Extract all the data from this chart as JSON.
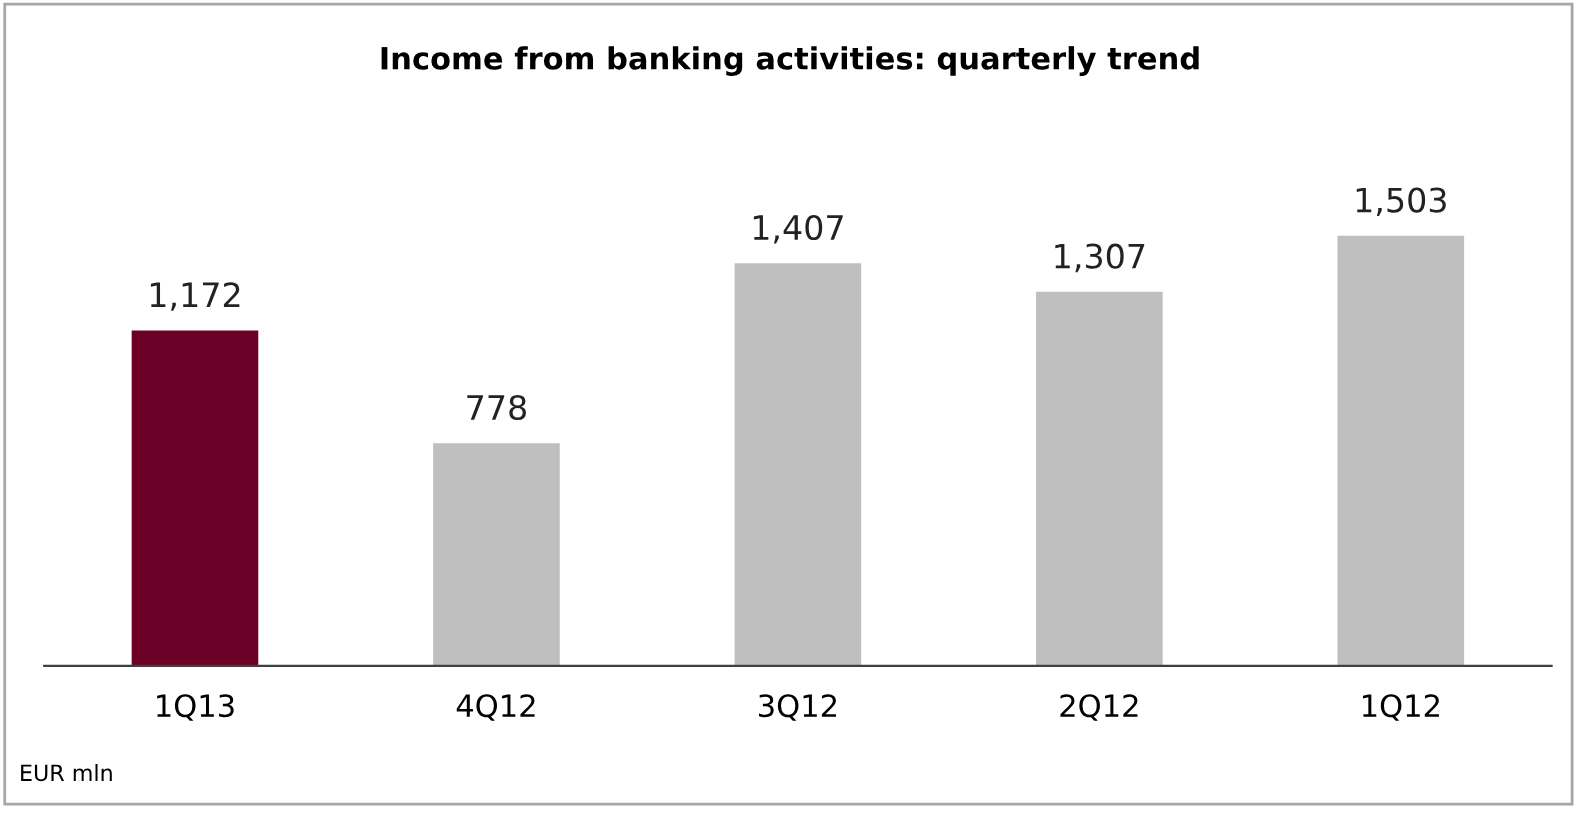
{
  "chart_data": {
    "type": "bar",
    "title": "Income from banking activities: quarterly trend",
    "categories": [
      "1Q13",
      "4Q12",
      "3Q12",
      "2Q12",
      "1Q12"
    ],
    "values": [
      1172,
      778,
      1407,
      1307,
      1503
    ],
    "colors": [
      "#6d0026",
      "#bfbfbf",
      "#bfbfbf",
      "#bfbfbf",
      "#bfbfbf"
    ],
    "value_labels": [
      "1,172",
      "778",
      "1,407",
      "1,307",
      "1,503"
    ],
    "annotations": [
      "EUR mln"
    ]
  }
}
